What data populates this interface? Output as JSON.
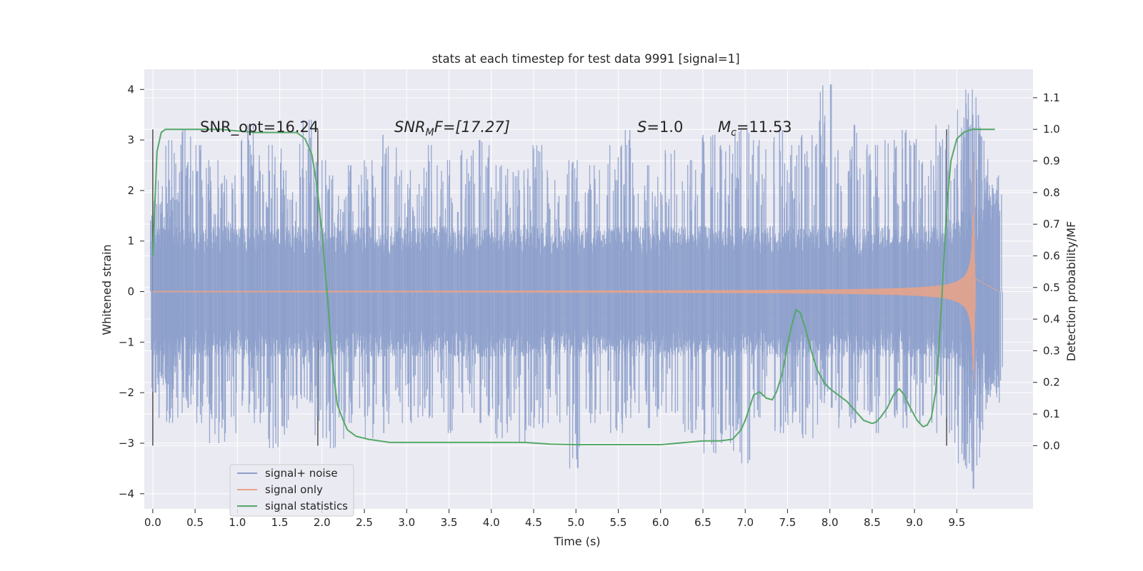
{
  "chart_data": {
    "type": "line",
    "title": "stats at each timestep for test data 9991 [signal=1]",
    "xlabel": "Time (s)",
    "ylabel": "Whitened strain",
    "ylabel_right": "Detection probability/MF",
    "xlim": [
      -0.1,
      10.4
    ],
    "ylim": [
      -4.3,
      4.4
    ],
    "ylim_right": [
      -0.2,
      1.19
    ],
    "x_ticks": [
      0.0,
      0.5,
      1.0,
      1.5,
      2.0,
      2.5,
      3.0,
      3.5,
      4.0,
      4.5,
      5.0,
      5.5,
      6.0,
      6.5,
      7.0,
      7.5,
      8.0,
      8.5,
      9.0,
      9.5
    ],
    "x_tick_labels": [
      "0.0",
      "0.5",
      "1.0",
      "1.5",
      "2.0",
      "2.5",
      "3.0",
      "3.5",
      "4.0",
      "4.5",
      "5.0",
      "5.5",
      "6.0",
      "6.5",
      "7.0",
      "7.5",
      "8.0",
      "8.5",
      "9.0",
      "9.5"
    ],
    "y_ticks": [
      4,
      3,
      2,
      1,
      0,
      -1,
      -2,
      -3,
      -4
    ],
    "y_tick_labels": [
      "4",
      "3",
      "2",
      "1",
      "0",
      "−1",
      "−2",
      "−3",
      "−4"
    ],
    "y_right_ticks": [
      1.1,
      1.0,
      0.9,
      0.8,
      0.7,
      0.6,
      0.5,
      0.4,
      0.3,
      0.2,
      0.1,
      0.0
    ],
    "y_right_tick_labels": [
      "1.1",
      "1.0",
      "0.9",
      "0.8",
      "0.7",
      "0.6",
      "0.5",
      "0.4",
      "0.3",
      "0.2",
      "0.1",
      "0.0"
    ],
    "grid": true,
    "legend_position": "lower-left",
    "annotations": {
      "snr_opt": "SNR_opt=16.24",
      "snr_mf_base": "SNR",
      "snr_mf_sub": "M",
      "snr_mf_rest": "F=[17.27]",
      "s_var": "S",
      "s_rest": "=1.0",
      "mc_var": "M",
      "mc_sub": "c",
      "mc_rest": "=11.53"
    },
    "vertical_markers": [
      0.0,
      1.95,
      9.38
    ],
    "series": [
      {
        "name": "signal+ noise",
        "color": "#8da0cb",
        "axis": "left",
        "t_start": 0.0,
        "t_end": 10.0,
        "core_envelope": 1.3,
        "spike_peaks": [
          [
            0.05,
            1.8,
            -2.0
          ],
          [
            0.15,
            2.2,
            -2.5
          ],
          [
            0.25,
            3.0,
            -2.6
          ],
          [
            0.35,
            3.2,
            -2.1
          ],
          [
            0.45,
            2.5,
            -2.3
          ],
          [
            0.6,
            2.9,
            -2.6
          ],
          [
            0.75,
            2.6,
            -3.0
          ],
          [
            0.9,
            2.3,
            -2.8
          ],
          [
            1.1,
            3.3,
            -2.4
          ],
          [
            1.25,
            2.7,
            -2.6
          ],
          [
            1.45,
            2.9,
            -3.1
          ],
          [
            1.6,
            2.4,
            -2.7
          ],
          [
            1.8,
            3.4,
            -2.2
          ],
          [
            2.0,
            2.6,
            -2.9
          ],
          [
            2.15,
            2.3,
            -3.1
          ],
          [
            2.35,
            2.5,
            -2.6
          ],
          [
            2.55,
            2.6,
            -2.9
          ],
          [
            2.8,
            3.1,
            -2.8
          ],
          [
            3.0,
            2.4,
            -2.6
          ],
          [
            3.2,
            2.9,
            -2.5
          ],
          [
            3.45,
            2.6,
            -2.8
          ],
          [
            3.7,
            2.8,
            -2.4
          ],
          [
            3.9,
            3.0,
            -2.6
          ],
          [
            4.1,
            2.5,
            -2.9
          ],
          [
            4.3,
            2.4,
            -3.0
          ],
          [
            4.5,
            2.9,
            -2.7
          ],
          [
            4.7,
            2.4,
            -2.6
          ],
          [
            4.95,
            2.6,
            -3.5
          ],
          [
            5.2,
            2.5,
            -2.6
          ],
          [
            5.45,
            2.9,
            -2.8
          ],
          [
            5.65,
            3.2,
            -2.5
          ],
          [
            5.9,
            2.5,
            -2.7
          ],
          [
            6.1,
            2.8,
            -2.4
          ],
          [
            6.35,
            2.6,
            -2.8
          ],
          [
            6.55,
            3.1,
            -3.2
          ],
          [
            6.75,
            2.9,
            -3.0
          ],
          [
            6.95,
            3.2,
            -3.4
          ],
          [
            7.15,
            3.0,
            -2.5
          ],
          [
            7.4,
            3.2,
            -2.8
          ],
          [
            7.55,
            2.9,
            -2.6
          ],
          [
            7.75,
            3.1,
            -2.9
          ],
          [
            7.95,
            4.1,
            -2.3
          ],
          [
            8.15,
            2.8,
            -2.7
          ],
          [
            8.35,
            3.3,
            -2.6
          ],
          [
            8.55,
            2.9,
            -2.8
          ],
          [
            8.75,
            3.0,
            -2.5
          ],
          [
            8.95,
            3.2,
            -2.7
          ],
          [
            9.15,
            2.6,
            -2.6
          ],
          [
            9.35,
            3.3,
            -2.8
          ],
          [
            9.55,
            3.6,
            -3.4
          ],
          [
            9.62,
            3.5,
            -3.9
          ],
          [
            9.7,
            4.0,
            -3.5
          ],
          [
            9.8,
            3.5,
            -2.7
          ],
          [
            9.95,
            2.3,
            -2.2
          ]
        ]
      },
      {
        "name": "signal only",
        "color": "#e5a38b",
        "axis": "left",
        "t_start": 0.0,
        "merger_time": 9.7,
        "peak_amplitude": 2.8,
        "ringdown_end": 9.72
      },
      {
        "name": "signal statistics",
        "color": "#55a868",
        "axis": "right",
        "x": [
          0.0,
          0.05,
          0.1,
          0.15,
          0.25,
          0.4,
          0.6,
          0.8,
          1.0,
          1.2,
          1.4,
          1.55,
          1.7,
          1.8,
          1.88,
          1.94,
          2.0,
          2.07,
          2.12,
          2.18,
          2.25,
          2.3,
          2.4,
          2.55,
          2.8,
          3.0,
          3.3,
          3.6,
          4.0,
          4.4,
          4.7,
          5.0,
          5.3,
          5.6,
          6.0,
          6.3,
          6.5,
          6.7,
          6.85,
          6.95,
          7.0,
          7.05,
          7.1,
          7.17,
          7.25,
          7.32,
          7.37,
          7.44,
          7.5,
          7.55,
          7.6,
          7.65,
          7.7,
          7.78,
          7.85,
          7.93,
          8.0,
          8.1,
          8.2,
          8.3,
          8.4,
          8.5,
          8.55,
          8.6,
          8.68,
          8.75,
          8.82,
          8.88,
          8.95,
          9.03,
          9.1,
          9.15,
          9.2,
          9.25,
          9.29,
          9.33,
          9.38,
          9.43,
          9.5,
          9.58,
          9.68,
          9.8,
          9.95
        ],
        "y": [
          0.6,
          0.93,
          0.99,
          1.0,
          1.0,
          1.0,
          1.0,
          1.0,
          0.995,
          0.99,
          0.99,
          0.99,
          0.99,
          0.97,
          0.92,
          0.82,
          0.67,
          0.45,
          0.27,
          0.13,
          0.08,
          0.05,
          0.03,
          0.02,
          0.01,
          0.01,
          0.01,
          0.01,
          0.01,
          0.01,
          0.005,
          0.003,
          0.003,
          0.003,
          0.003,
          0.01,
          0.015,
          0.015,
          0.02,
          0.05,
          0.08,
          0.12,
          0.16,
          0.17,
          0.15,
          0.145,
          0.17,
          0.23,
          0.32,
          0.38,
          0.43,
          0.42,
          0.38,
          0.3,
          0.24,
          0.2,
          0.18,
          0.16,
          0.14,
          0.11,
          0.08,
          0.07,
          0.075,
          0.09,
          0.12,
          0.16,
          0.18,
          0.16,
          0.12,
          0.08,
          0.06,
          0.065,
          0.09,
          0.17,
          0.32,
          0.5,
          0.75,
          0.9,
          0.97,
          0.99,
          1.0,
          1.0,
          1.0
        ]
      }
    ]
  }
}
